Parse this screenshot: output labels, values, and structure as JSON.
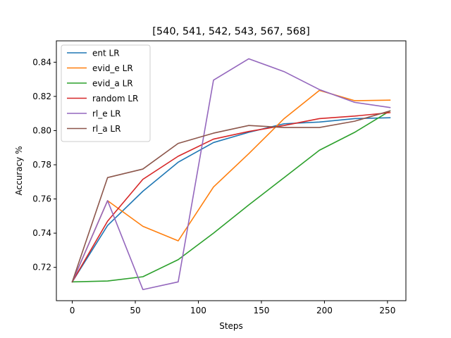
{
  "chart_data": {
    "type": "line",
    "title": "[540, 541, 542, 543, 567, 568]",
    "xlabel": "Steps",
    "ylabel": "Accuracy %",
    "xlim": [
      -12.6,
      264.6
    ],
    "ylim": [
      0.7005,
      0.8525
    ],
    "xticks": [
      0,
      50,
      100,
      150,
      200,
      250
    ],
    "yticks": [
      0.72,
      0.74,
      0.76,
      0.78,
      0.8,
      0.82,
      0.84
    ],
    "grid": false,
    "legend_position": "top-left",
    "x": [
      0,
      28,
      56,
      84,
      112,
      140,
      168,
      196,
      224,
      252
    ],
    "series": [
      {
        "name": "ent LR",
        "color": "#1f77b4",
        "values": [
          0.7115,
          0.7445,
          0.7645,
          0.7815,
          0.793,
          0.799,
          0.804,
          0.805,
          0.807,
          0.8075
        ]
      },
      {
        "name": "evid_e LR",
        "color": "#ff7f0e",
        "values": [
          0.7115,
          0.759,
          0.744,
          0.7355,
          0.767,
          0.7865,
          0.807,
          0.8235,
          0.8175,
          0.8178
        ]
      },
      {
        "name": "evid_a LR",
        "color": "#2ca02c",
        "values": [
          0.7115,
          0.712,
          0.7145,
          0.7245,
          0.74,
          0.7565,
          0.7725,
          0.7885,
          0.799,
          0.8115
        ]
      },
      {
        "name": "random LR",
        "color": "#d62728",
        "values": [
          0.7115,
          0.747,
          0.7715,
          0.785,
          0.795,
          0.7995,
          0.803,
          0.807,
          0.8085,
          0.8105
        ]
      },
      {
        "name": "rl_e LR",
        "color": "#9467bd",
        "values": [
          0.7115,
          0.759,
          0.707,
          0.7115,
          0.8295,
          0.842,
          0.8345,
          0.824,
          0.8165,
          0.8135
        ]
      },
      {
        "name": "rl_a LR",
        "color": "#8c564b",
        "values": [
          0.7115,
          0.7725,
          0.7775,
          0.7925,
          0.7985,
          0.803,
          0.8018,
          0.8018,
          0.8055,
          0.8115
        ]
      }
    ]
  }
}
